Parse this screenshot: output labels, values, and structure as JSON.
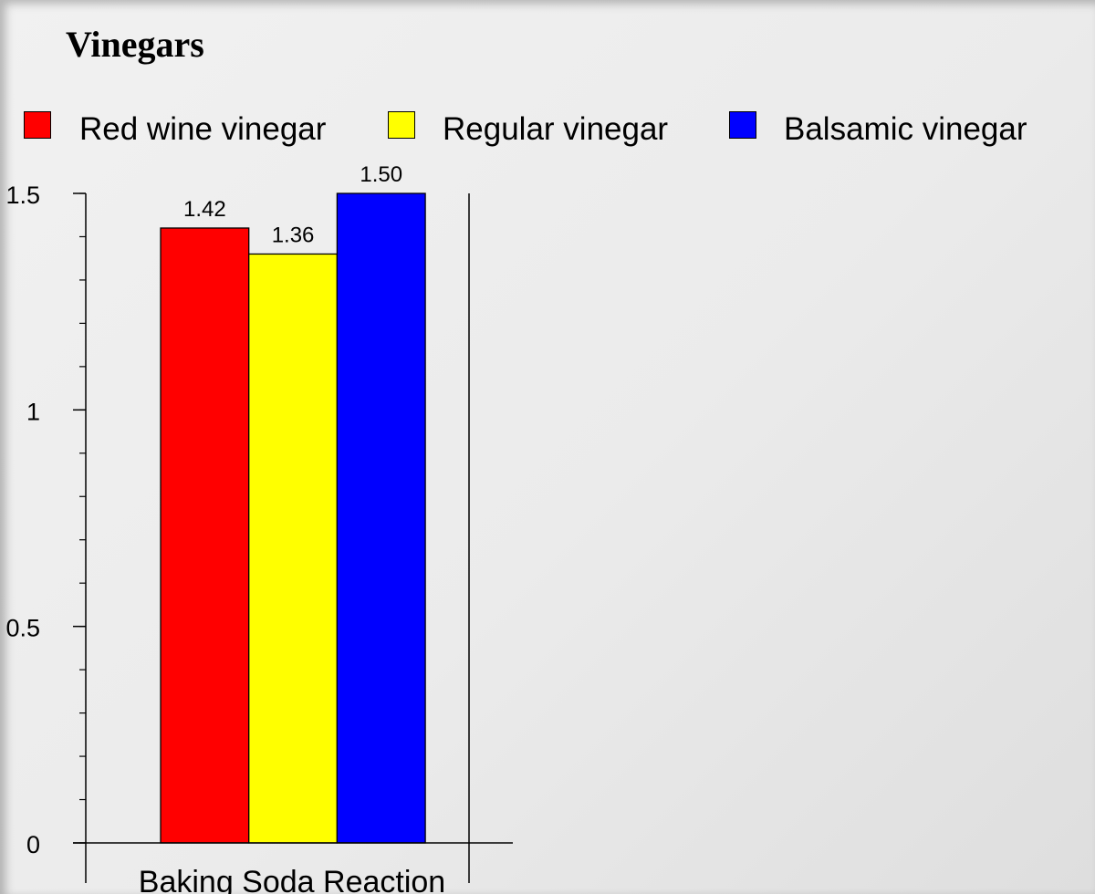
{
  "chart_data": {
    "type": "bar",
    "title": "Vinegars",
    "categories": [
      "Baking Soda Reaction"
    ],
    "series": [
      {
        "name": "Red wine vinegar",
        "values": [
          1.42
        ],
        "color": "#ff0000",
        "label": "1.42"
      },
      {
        "name": "Regular vinegar",
        "values": [
          1.36
        ],
        "color": "#ffff00",
        "label": "1.36"
      },
      {
        "name": "Balsamic vinegar",
        "values": [
          1.5
        ],
        "color": "#0000ff",
        "label": "1.50"
      }
    ],
    "yticks": [
      {
        "value": 0,
        "label": "0"
      },
      {
        "value": 0.5,
        "label": "0.5"
      },
      {
        "value": 1,
        "label": "1"
      },
      {
        "value": 1.5,
        "label": "1.5"
      }
    ],
    "minor_tick_step": 0.1,
    "ylim": [
      0,
      1.5
    ],
    "legend_position": "top",
    "grid": false
  }
}
